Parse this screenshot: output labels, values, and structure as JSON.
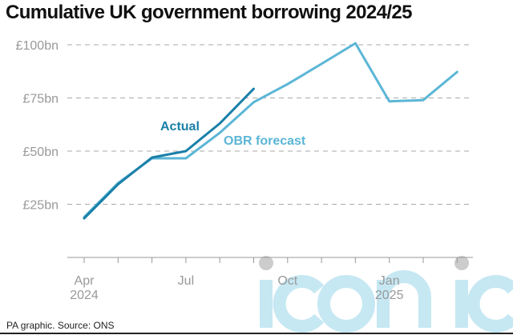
{
  "title": "Cumulative UK government borrowing 2024/25",
  "source": "PA graphic. Source: ONS",
  "watermark": "iconic",
  "chart_data": {
    "type": "line",
    "title": "Cumulative UK government borrowing 2024/25",
    "x": [
      "2024-04",
      "2024-05",
      "2024-06",
      "2024-07",
      "2024-08",
      "2024-09",
      "2024-10",
      "2024-11",
      "2024-12",
      "2025-01",
      "2025-02",
      "2025-03"
    ],
    "x_ticks": [
      {
        "x": "2024-04",
        "label": "Apr",
        "sub": "2024"
      },
      {
        "x": "2024-07",
        "label": "Jul",
        "sub": ""
      },
      {
        "x": "2024-10",
        "label": "Oct",
        "sub": ""
      },
      {
        "x": "2025-01",
        "label": "Jan",
        "sub": "2025"
      }
    ],
    "y_ticks": [
      {
        "value": 25,
        "label": "£25bn"
      },
      {
        "value": 50,
        "label": "£50bn"
      },
      {
        "value": 75,
        "label": "£75bn"
      },
      {
        "value": 100,
        "label": "£100bn"
      }
    ],
    "ylim": [
      0,
      100
    ],
    "grid": "horizontal dashed",
    "series": [
      {
        "name": "OBR forecast",
        "color": "#5bb6d6",
        "values": [
          19.0,
          35.0,
          46.6,
          46.6,
          58.6,
          73.0,
          81.5,
          91.0,
          100.7,
          73.4,
          74.0,
          87.2
        ]
      },
      {
        "name": "Actual",
        "color": "#1a7fa8",
        "values": [
          18.4,
          34.4,
          47.0,
          50.0,
          63.0,
          79.3,
          null,
          null,
          null,
          null,
          null,
          null
        ]
      }
    ]
  }
}
